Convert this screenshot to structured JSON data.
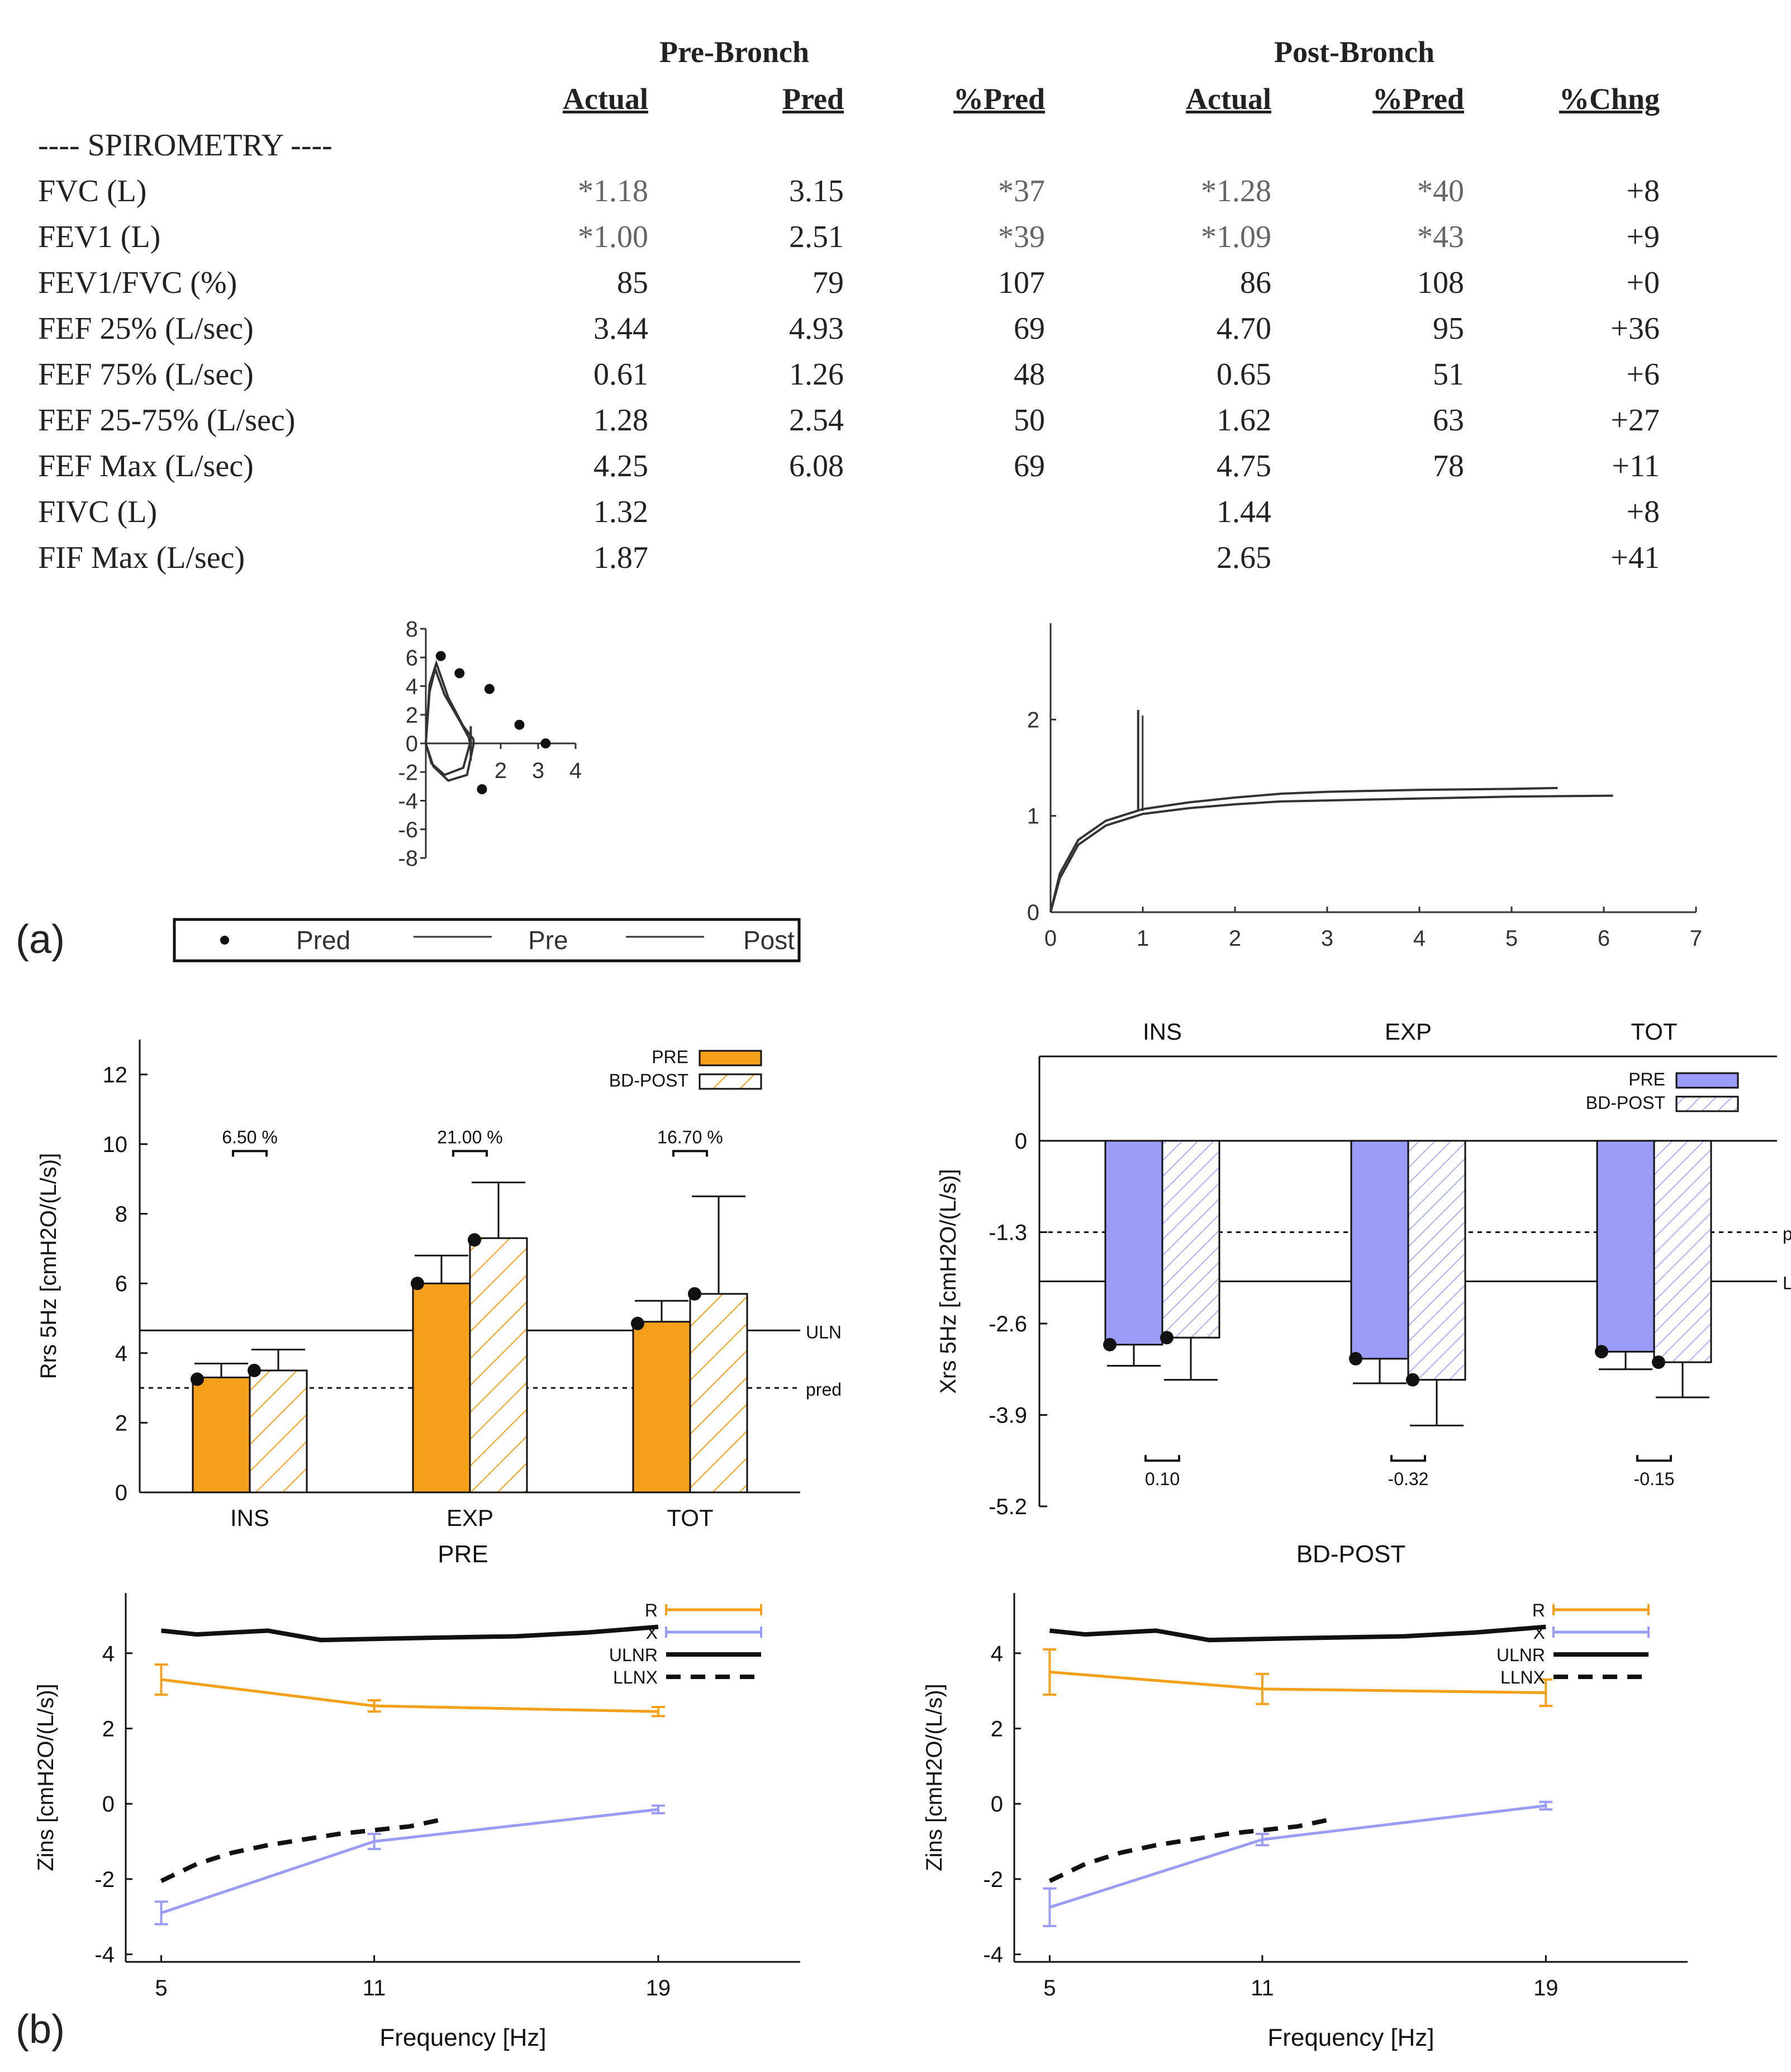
{
  "spirometry": {
    "group_pre": "Pre-Bronch",
    "group_post": "Post-Bronch",
    "columns": [
      "Actual",
      "Pred",
      "%Pred",
      "Actual",
      "%Pred",
      "%Chng"
    ],
    "section_title": "---- SPIROMETRY ----",
    "rows": [
      {
        "label": "FVC (L)",
        "values": [
          "*1.18",
          "3.15",
          "*37",
          "*1.28",
          "*40",
          "+8"
        ]
      },
      {
        "label": "FEV1 (L)",
        "values": [
          "*1.00",
          "2.51",
          "*39",
          "*1.09",
          "*43",
          "+9"
        ]
      },
      {
        "label": "FEV1/FVC (%)",
        "values": [
          "85",
          "79",
          "107",
          "86",
          "108",
          "+0"
        ]
      },
      {
        "label": "FEF 25% (L/sec)",
        "values": [
          "3.44",
          "4.93",
          "69",
          "4.70",
          "95",
          "+36"
        ]
      },
      {
        "label": "FEF 75% (L/sec)",
        "values": [
          "0.61",
          "1.26",
          "48",
          "0.65",
          "51",
          "+6"
        ]
      },
      {
        "label": "FEF 25-75% (L/sec)",
        "values": [
          "1.28",
          "2.54",
          "50",
          "1.62",
          "63",
          "+27"
        ]
      },
      {
        "label": "FEF Max (L/sec)",
        "values": [
          "4.25",
          "6.08",
          "69",
          "4.75",
          "78",
          "+11"
        ]
      },
      {
        "label": "FIVC (L)",
        "values": [
          "1.32",
          "",
          "",
          "1.44",
          "",
          "+8"
        ]
      },
      {
        "label": "FIF Max (L/sec)",
        "values": [
          "1.87",
          "",
          "",
          "2.65",
          "",
          "+41"
        ]
      }
    ]
  },
  "figure_labels": {
    "a": "(a)",
    "b": "(b)"
  },
  "colors": {
    "orange": "#f5a01a",
    "blue": "#9b9cf5",
    "black": "#111111",
    "grid": "#444444"
  },
  "chart_data": [
    {
      "id": "flow_volume",
      "type": "scatter",
      "title": "",
      "xlabel": "",
      "ylabel": "",
      "xlim": [
        0,
        4
      ],
      "ylim": [
        -8,
        8
      ],
      "x_ticks": [
        "2",
        "3",
        "4"
      ],
      "y_ticks": [
        "8",
        "6",
        "4",
        "2",
        "0",
        "-2",
        "-4",
        "-6",
        "-8"
      ],
      "pred_points": [
        [
          0.4,
          6.1
        ],
        [
          0.9,
          4.9
        ],
        [
          1.7,
          3.8
        ],
        [
          2.5,
          1.3
        ],
        [
          3.2,
          0.0
        ],
        [
          1.5,
          -3.2
        ]
      ],
      "pre_loop": [
        [
          0,
          0
        ],
        [
          0.1,
          3.6
        ],
        [
          0.25,
          5.2
        ],
        [
          0.5,
          3.4
        ],
        [
          0.9,
          1.6
        ],
        [
          1.15,
          0.4
        ],
        [
          1.18,
          0
        ],
        [
          1.0,
          -1.7
        ],
        [
          0.5,
          -2.2
        ],
        [
          0.15,
          -1.4
        ],
        [
          0,
          0
        ]
      ],
      "post_loop": [
        [
          0,
          0
        ],
        [
          0.1,
          4.1
        ],
        [
          0.28,
          5.6
        ],
        [
          0.6,
          3.2
        ],
        [
          1.0,
          1.2
        ],
        [
          1.27,
          0.3
        ],
        [
          1.28,
          0
        ],
        [
          1.1,
          -2.2
        ],
        [
          0.6,
          -2.6
        ],
        [
          0.2,
          -1.6
        ],
        [
          0,
          0
        ]
      ],
      "legend": [
        "Pred",
        "Pre",
        "Post"
      ]
    },
    {
      "id": "volume_time",
      "type": "line",
      "xlim": [
        0,
        7
      ],
      "ylim": [
        0,
        3
      ],
      "x_ticks": [
        "0",
        "1",
        "2",
        "3",
        "4",
        "5",
        "6",
        "7"
      ],
      "y_ticks": [
        "0",
        "1",
        "2"
      ],
      "series": [
        {
          "name": "Pre",
          "x": [
            0,
            0.1,
            0.3,
            0.6,
            1,
            1.5,
            2,
            2.5,
            3,
            4,
            5,
            6.1
          ],
          "values": [
            0,
            0.35,
            0.7,
            0.9,
            1.02,
            1.08,
            1.12,
            1.15,
            1.16,
            1.18,
            1.2,
            1.21
          ]
        },
        {
          "name": "Post",
          "x": [
            0,
            0.1,
            0.3,
            0.6,
            1,
            1.5,
            2,
            2.5,
            3,
            4,
            5,
            5.5
          ],
          "values": [
            0,
            0.4,
            0.75,
            0.95,
            1.07,
            1.14,
            1.19,
            1.23,
            1.25,
            1.27,
            1.28,
            1.29
          ]
        }
      ],
      "spike": {
        "x": 0.95,
        "ymin": 1.05,
        "ymax": 2.1
      }
    },
    {
      "id": "rrs_bars",
      "type": "bar",
      "ylabel": "Rrs 5Hz [cmH2O/(L/s)]",
      "ylim": [
        0,
        13
      ],
      "y_ticks": [
        "0",
        "2",
        "4",
        "6",
        "8",
        "10",
        "12"
      ],
      "categories": [
        "INS",
        "EXP",
        "TOT"
      ],
      "series": [
        {
          "name": "PRE",
          "values": [
            3.3,
            6.0,
            4.9
          ],
          "err": [
            0.4,
            0.8,
            0.6
          ],
          "points": [
            3.25,
            6.0,
            4.85
          ]
        },
        {
          "name": "BD-POST",
          "values": [
            3.5,
            7.3,
            5.7
          ],
          "err": [
            0.6,
            1.6,
            2.8
          ],
          "points": [
            3.5,
            7.25,
            5.7
          ]
        }
      ],
      "change_labels": [
        "6.50 %",
        "21.00 %",
        "16.70 %"
      ],
      "uln": 4.65,
      "pred": 3.0,
      "ref_labels": {
        "uln": "ULN",
        "pred": "pred"
      }
    },
    {
      "id": "xrs_bars",
      "type": "bar",
      "ylabel": "Xrs 5Hz [cmH2O/(L/s)]",
      "ylim": [
        -5.2,
        1.2
      ],
      "y_ticks": [
        "0",
        "-1.3",
        "-2.6",
        "-3.9",
        "-5.2"
      ],
      "categories": [
        "INS",
        "EXP",
        "TOT"
      ],
      "series": [
        {
          "name": "PRE",
          "values": [
            -2.9,
            -3.1,
            -3.0
          ],
          "err": [
            0.3,
            0.35,
            0.25
          ],
          "points": [
            -2.9,
            -3.1,
            -3.0
          ]
        },
        {
          "name": "BD-POST",
          "values": [
            -2.8,
            -3.4,
            -3.15
          ],
          "err": [
            0.6,
            0.65,
            0.5
          ],
          "points": [
            -2.8,
            -3.4,
            -3.15
          ]
        }
      ],
      "change_labels": [
        "0.10",
        "-0.32",
        "-0.15"
      ],
      "pred": -1.3,
      "lln": -2.0,
      "ref_labels": {
        "pred": "pred",
        "lln": "LLN"
      }
    },
    {
      "id": "zins_pre",
      "type": "line",
      "title": "PRE",
      "xlabel": "Frequency [Hz]",
      "ylabel": "Zins [cmH2O/(L/s)]",
      "xlim": [
        4,
        23
      ],
      "ylim": [
        -4.2,
        5.6
      ],
      "x_ticks": [
        "5",
        "11",
        "19"
      ],
      "y_ticks": [
        "-4",
        "-2",
        "0",
        "2",
        "4"
      ],
      "series": [
        {
          "name": "R",
          "x": [
            5,
            11,
            19
          ],
          "values": [
            3.3,
            2.6,
            2.45
          ],
          "err": [
            0.4,
            0.15,
            0.12
          ]
        },
        {
          "name": "X",
          "x": [
            5,
            11,
            19
          ],
          "values": [
            -2.9,
            -1.0,
            -0.15
          ],
          "err": [
            0.3,
            0.2,
            0.1
          ]
        },
        {
          "name": "ULN_R",
          "x": [
            5,
            6,
            8,
            9.5,
            12,
            15,
            17,
            19
          ],
          "values": [
            4.6,
            4.5,
            4.6,
            4.35,
            4.4,
            4.45,
            4.55,
            4.7
          ]
        },
        {
          "name": "LLN_X",
          "x": [
            5,
            6,
            7,
            8,
            9,
            10,
            11,
            12,
            13
          ],
          "values": [
            -2.05,
            -1.6,
            -1.3,
            -1.1,
            -0.95,
            -0.8,
            -0.7,
            -0.6,
            -0.4
          ]
        }
      ],
      "legend": [
        "R",
        "X",
        "ULNR",
        "LLNX"
      ]
    },
    {
      "id": "zins_bdpost",
      "type": "line",
      "title": "BD-POST",
      "xlabel": "Frequency [Hz]",
      "ylabel": "Zins [cmH2O/(L/s)]",
      "xlim": [
        4,
        23
      ],
      "ylim": [
        -4.2,
        5.6
      ],
      "x_ticks": [
        "5",
        "11",
        "19"
      ],
      "y_ticks": [
        "-4",
        "-2",
        "0",
        "2",
        "4"
      ],
      "series": [
        {
          "name": "R",
          "x": [
            5,
            11,
            19
          ],
          "values": [
            3.5,
            3.05,
            2.95
          ],
          "err": [
            0.6,
            0.4,
            0.35
          ]
        },
        {
          "name": "X",
          "x": [
            5,
            11,
            19
          ],
          "values": [
            -2.75,
            -0.95,
            -0.05
          ],
          "err": [
            0.5,
            0.15,
            0.1
          ]
        },
        {
          "name": "ULN_R",
          "x": [
            5,
            6,
            8,
            9.5,
            12,
            15,
            17,
            19
          ],
          "values": [
            4.6,
            4.5,
            4.6,
            4.35,
            4.4,
            4.45,
            4.55,
            4.7
          ]
        },
        {
          "name": "LLN_X",
          "x": [
            5,
            6,
            7,
            8,
            9,
            10,
            11,
            12,
            13
          ],
          "values": [
            -2.05,
            -1.6,
            -1.3,
            -1.1,
            -0.95,
            -0.8,
            -0.7,
            -0.6,
            -0.4
          ]
        }
      ],
      "legend": [
        "R",
        "X",
        "ULNR",
        "LLNX"
      ]
    }
  ]
}
